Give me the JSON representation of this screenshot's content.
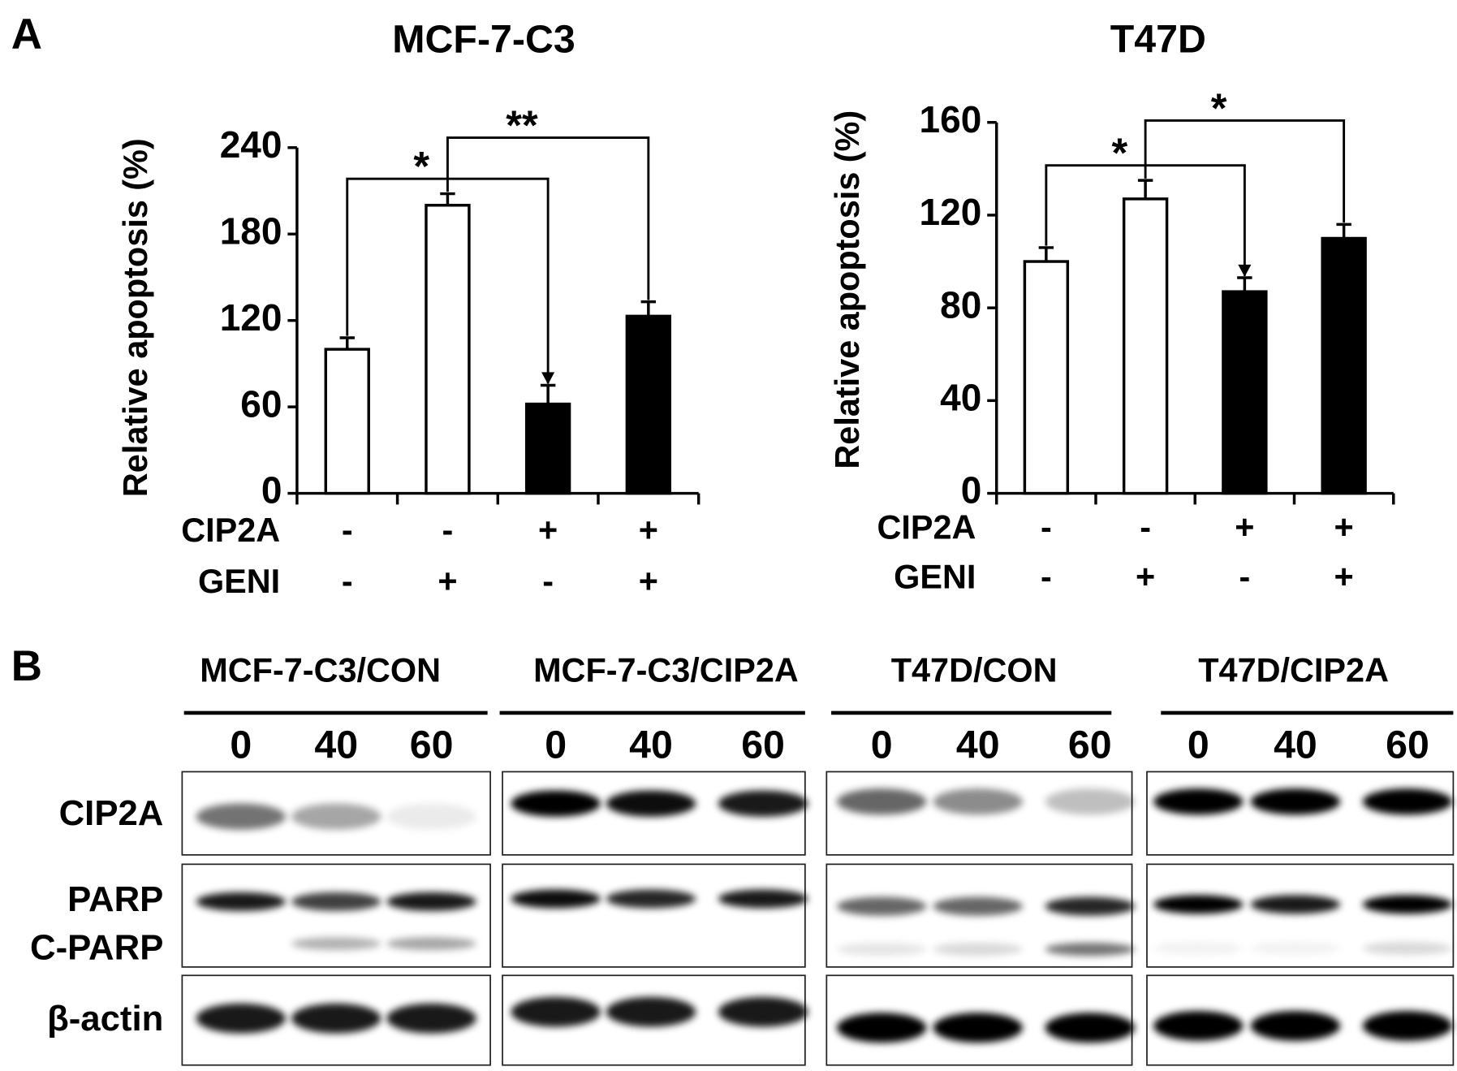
{
  "panel_a_label": "A",
  "chart_data": [
    {
      "type": "bar",
      "title": "MCF-7-C3",
      "y_label": "Relative apoptosis (%)",
      "values": [
        100,
        200,
        62,
        123
      ],
      "errors": [
        8,
        8,
        13,
        10
      ],
      "colors": [
        "#ffffff",
        "#ffffff",
        "#000000",
        "#000000"
      ],
      "conditions": [
        {
          "name": "CIP2A",
          "values": [
            "-",
            "-",
            "+",
            "+"
          ]
        },
        {
          "name": "GENI",
          "values": [
            "-",
            "+",
            "-",
            "+"
          ]
        }
      ],
      "annotations": [
        "*",
        "**"
      ],
      "ylim": [
        0,
        240
      ],
      "yticks": [
        0,
        60,
        120,
        180,
        240
      ]
    },
    {
      "type": "bar",
      "title": "T47D",
      "y_label": "Relative apoptosis (%)",
      "values": [
        100,
        127,
        87,
        110
      ],
      "errors": [
        6,
        8,
        6,
        6
      ],
      "colors": [
        "#ffffff",
        "#ffffff",
        "#000000",
        "#000000"
      ],
      "conditions": [
        {
          "name": "CIP2A",
          "values": [
            "-",
            "-",
            "+",
            "+"
          ]
        },
        {
          "name": "GENI",
          "values": [
            "-",
            "+",
            "-",
            "+"
          ]
        }
      ],
      "annotations": [
        "*",
        "*"
      ],
      "ylim": [
        0,
        160
      ],
      "yticks": [
        0,
        40,
        80,
        120,
        160
      ]
    }
  ],
  "panel_b": {
    "label": "B",
    "groups": [
      {
        "label": "MCF-7-C3/CON",
        "lanes": [
          "0",
          "40",
          "60"
        ]
      },
      {
        "label": "MCF-7-C3/CIP2A",
        "lanes": [
          "0",
          "40",
          "60"
        ]
      },
      {
        "label": "T47D/CON",
        "lanes": [
          "0",
          "40",
          "60"
        ]
      },
      {
        "label": "T47D/CIP2A",
        "lanes": [
          "0",
          "40",
          "60"
        ]
      }
    ],
    "rows": [
      "CIP2A",
      "PARP",
      "C-PARP",
      "β-actin"
    ]
  }
}
